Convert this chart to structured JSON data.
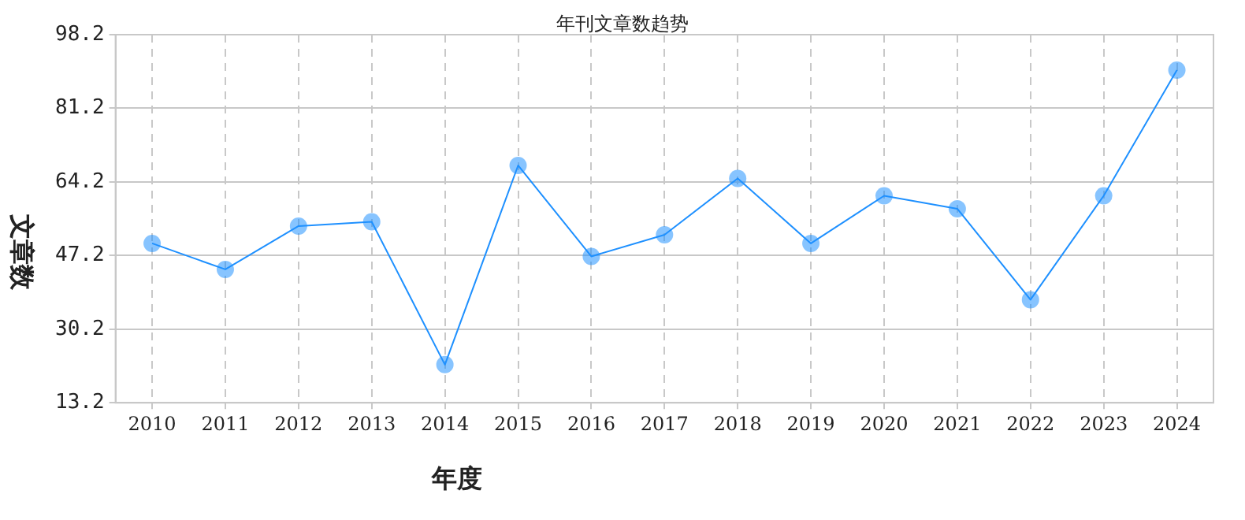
{
  "chart_data": {
    "type": "line",
    "title": "年刊文章数趋势",
    "xlabel": "年度",
    "ylabel": "文章数",
    "categories": [
      "2010",
      "2011",
      "2012",
      "2013",
      "2014",
      "2015",
      "2016",
      "2017",
      "2018",
      "2019",
      "2020",
      "2021",
      "2022",
      "2023",
      "2024"
    ],
    "series": [
      {
        "color": "#1e90ff",
        "values": [
          50,
          44,
          54,
          55,
          22,
          68,
          47,
          52,
          65,
          50,
          61,
          58,
          37,
          61,
          90
        ]
      }
    ],
    "ylim": [
      13.2,
      98.2
    ],
    "yticks": [
      13.2,
      30.2,
      47.2,
      64.2,
      81.2,
      98.2
    ],
    "grid": true,
    "legend": false,
    "marker": "circle",
    "line_style": "solid"
  }
}
